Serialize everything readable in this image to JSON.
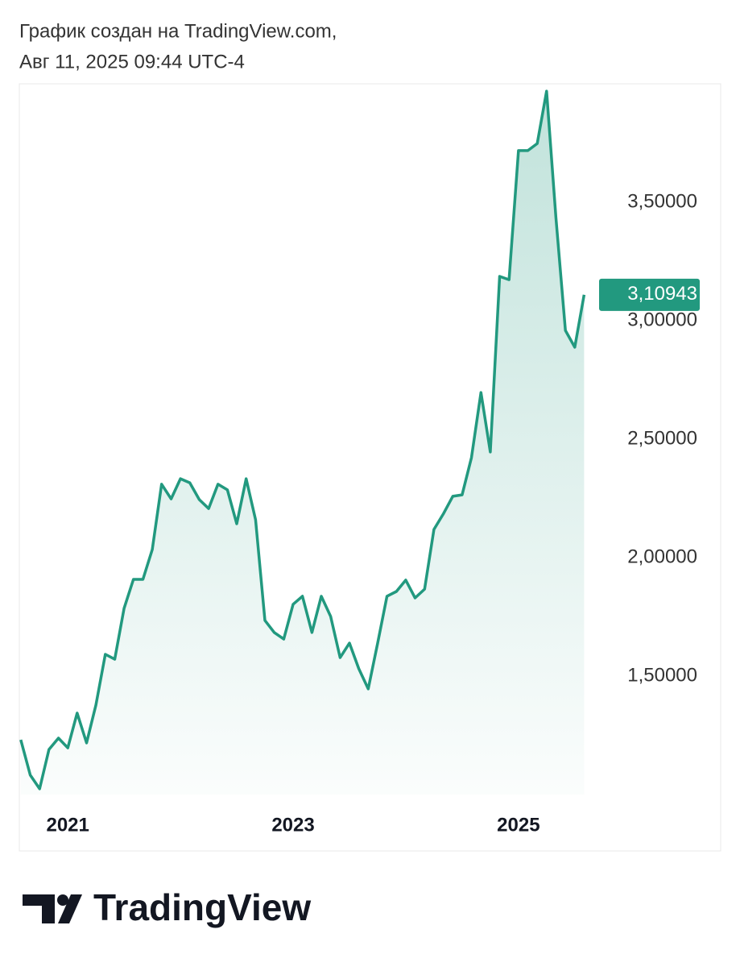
{
  "chart_data": {
    "type": "area",
    "title": "График создан на TradingView.com,",
    "subtitle": "Авг 11, 2025 09:44 UTC-4",
    "x": [
      2020.583,
      2020.667,
      2020.75,
      2020.833,
      2020.917,
      2021,
      2021.083,
      2021.167,
      2021.25,
      2021.333,
      2021.417,
      2021.5,
      2021.583,
      2021.667,
      2021.75,
      2021.833,
      2021.917,
      2022,
      2022.083,
      2022.167,
      2022.25,
      2022.333,
      2022.417,
      2022.5,
      2022.583,
      2022.667,
      2022.75,
      2022.833,
      2022.917,
      2023,
      2023.083,
      2023.167,
      2023.25,
      2023.333,
      2023.417,
      2023.5,
      2023.583,
      2023.667,
      2023.75,
      2023.833,
      2023.917,
      2024,
      2024.083,
      2024.167,
      2024.25,
      2024.333,
      2024.417,
      2024.5,
      2024.583,
      2024.667,
      2024.75,
      2024.833,
      2024.917,
      2025,
      2025.083,
      2025.167,
      2025.25,
      2025.333,
      2025.417,
      2025.5,
      2025.583
    ],
    "series": [
      {
        "color": "#22997f",
        "values": [
          1.231,
          1.082,
          1.024,
          1.19,
          1.238,
          1.197,
          1.344,
          1.218,
          1.378,
          1.592,
          1.571,
          1.786,
          1.908,
          1.908,
          2.034,
          2.31,
          2.248,
          2.333,
          2.316,
          2.245,
          2.207,
          2.31,
          2.286,
          2.143,
          2.333,
          2.16,
          1.735,
          1.684,
          1.656,
          1.803,
          1.837,
          1.684,
          1.837,
          1.752,
          1.578,
          1.639,
          1.531,
          1.446,
          1.639,
          1.837,
          1.857,
          1.905,
          1.83,
          1.867,
          2.119,
          2.184,
          2.259,
          2.265,
          2.422,
          2.697,
          2.446,
          3.187,
          3.173,
          3.718,
          3.718,
          3.748,
          3.969,
          3.435,
          2.959,
          2.888,
          3.10943
        ]
      }
    ],
    "last_price": {
      "value": 3.10943,
      "label": "3,10943"
    },
    "xlim": [
      2020.57,
      2025.68
    ],
    "xticks": [
      2021,
      2023,
      2025
    ],
    "ylim": [
      1.0,
      4.0
    ],
    "yticks": [
      {
        "value": 1.5,
        "label": "1,50000"
      },
      {
        "value": 2.0,
        "label": "2,00000"
      },
      {
        "value": 2.5,
        "label": "2,50000"
      },
      {
        "value": 3.0,
        "label": "3,00000"
      },
      {
        "value": 3.5,
        "label": "3,50000"
      }
    ],
    "grid": false
  },
  "logo": "TradingView"
}
